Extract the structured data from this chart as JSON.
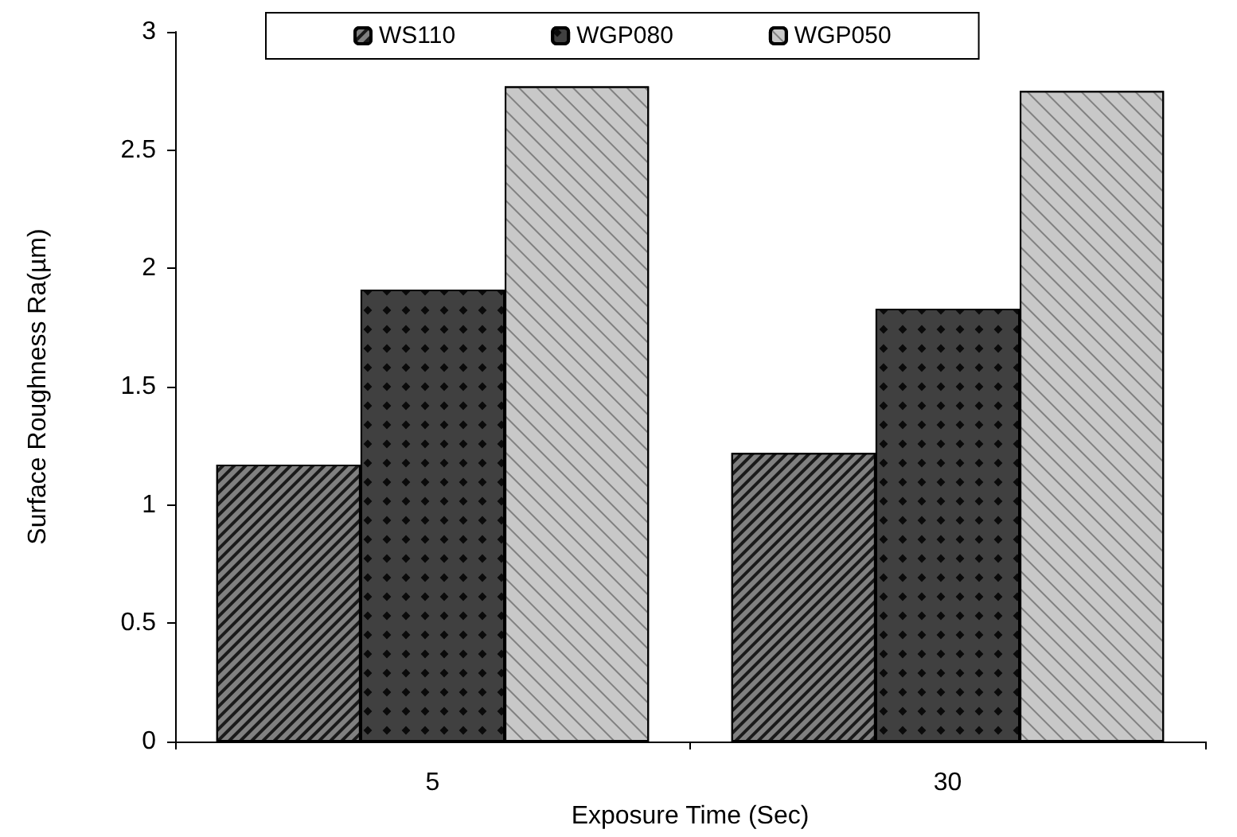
{
  "chart_data": {
    "type": "bar",
    "xlabel": "Exposure Time (Sec)",
    "ylabel": "Surface Roughness Ra(µm)",
    "categories": [
      "5",
      "30"
    ],
    "series": [
      {
        "name": "WS110",
        "color": "#808080",
        "values": [
          1.17,
          1.22
        ]
      },
      {
        "name": "WGP080",
        "color": "#404040",
        "values": [
          1.91,
          1.83
        ]
      },
      {
        "name": "WGP050",
        "color": "#c8c8c8",
        "values": [
          2.77,
          2.75
        ]
      }
    ],
    "ylim": [
      0,
      3
    ],
    "yticks": [
      0,
      0.5,
      1,
      1.5,
      2,
      2.5,
      3
    ],
    "grid": false,
    "legend": "top"
  }
}
